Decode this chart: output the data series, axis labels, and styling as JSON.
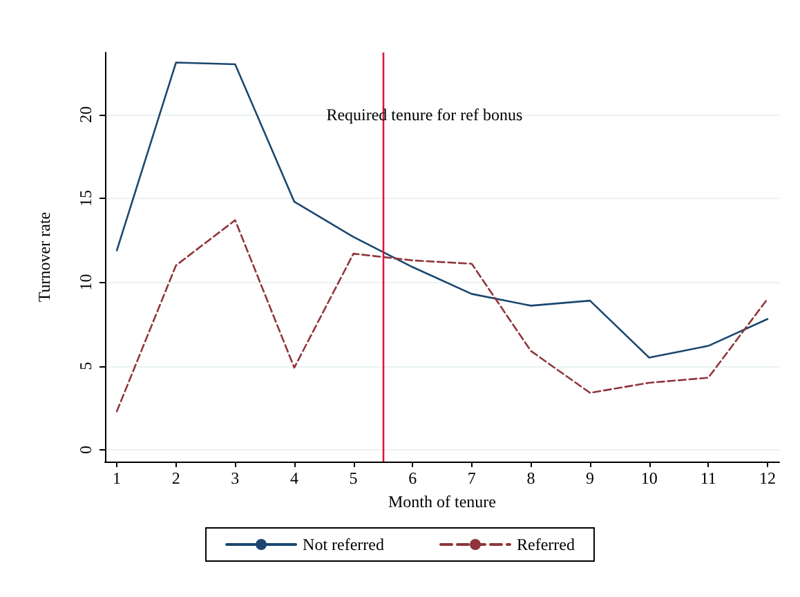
{
  "chart_data": {
    "type": "line",
    "xlabel": "Month of tenure",
    "ylabel": "Turnover rate",
    "x": [
      1,
      2,
      3,
      4,
      5,
      6,
      7,
      8,
      9,
      10,
      11,
      12
    ],
    "series": [
      {
        "name": "Not referred",
        "color": "#1a476f",
        "line_style": "solid",
        "values": [
          11.9,
          23.1,
          23.0,
          14.8,
          12.7,
          10.9,
          9.3,
          8.6,
          8.9,
          5.5,
          6.2,
          7.8
        ]
      },
      {
        "name": "Referred",
        "color": "#90353b",
        "line_style": "dashed",
        "values": [
          2.3,
          11.0,
          13.7,
          4.9,
          11.7,
          11.3,
          11.1,
          5.9,
          3.4,
          4.0,
          4.3,
          9.0
        ]
      }
    ],
    "xlim": [
      0.8,
      12.2
    ],
    "xticks": [
      1,
      2,
      3,
      4,
      5,
      6,
      7,
      8,
      9,
      10,
      11,
      12
    ],
    "ylim": [
      -0.7,
      23.7
    ],
    "yticks": [
      0,
      5,
      10,
      15,
      20
    ],
    "ref_lines": [
      {
        "axis": "x",
        "value": 5.5,
        "label": "Required tenure for ref bonus",
        "color": "#e0143c",
        "line_style": "solid"
      }
    ],
    "grid": "y",
    "legend": "bottom",
    "marker": "none"
  }
}
